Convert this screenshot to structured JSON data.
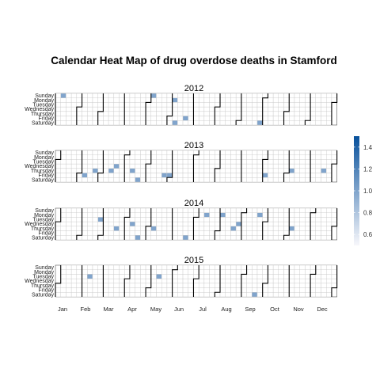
{
  "chart_data": {
    "type": "heatmap",
    "title": "Calendar Heat Map of drug overdose deaths in Stamford",
    "years": [
      "2012",
      "2013",
      "2014",
      "2015"
    ],
    "weekdays": [
      "Sunday",
      "Monday",
      "Tuesday",
      "Wednesday",
      "Thursday",
      "Friday",
      "Saturday"
    ],
    "months": [
      "Jan",
      "Feb",
      "Mar",
      "Apr",
      "May",
      "Jun",
      "Jul",
      "Aug",
      "Sep",
      "Oct",
      "Nov",
      "Dec"
    ],
    "legend": {
      "ticks": [
        1.4,
        1.2,
        1.0,
        0.8,
        0.6
      ],
      "min": 0.5,
      "max": 1.5,
      "low_color": "#f7f7fb",
      "high_color": "#08519c"
    },
    "values": [
      {
        "date": "2012-01-08",
        "value": 1
      },
      {
        "date": "2012-05-06",
        "value": 1
      },
      {
        "date": "2012-06-04",
        "value": 1
      },
      {
        "date": "2012-06-09",
        "value": 1
      },
      {
        "date": "2012-06-22",
        "value": 1
      },
      {
        "date": "2012-09-29",
        "value": 1
      },
      {
        "date": "2013-02-08",
        "value": 1
      },
      {
        "date": "2013-02-21",
        "value": 1
      },
      {
        "date": "2013-03-14",
        "value": 1
      },
      {
        "date": "2013-03-20",
        "value": 1
      },
      {
        "date": "2013-04-11",
        "value": 1
      },
      {
        "date": "2013-04-20",
        "value": 1
      },
      {
        "date": "2013-05-24",
        "value": 1
      },
      {
        "date": "2013-05-31",
        "value": 1
      },
      {
        "date": "2013-10-04",
        "value": 1
      },
      {
        "date": "2013-11-07",
        "value": 1
      },
      {
        "date": "2013-12-19",
        "value": 1
      },
      {
        "date": "2014-02-25",
        "value": 1
      },
      {
        "date": "2014-03-20",
        "value": 1
      },
      {
        "date": "2014-04-09",
        "value": 1
      },
      {
        "date": "2014-04-19",
        "value": 1
      },
      {
        "date": "2014-05-08",
        "value": 1
      },
      {
        "date": "2014-06-21",
        "value": 1
      },
      {
        "date": "2014-07-14",
        "value": 1
      },
      {
        "date": "2014-08-04",
        "value": 1
      },
      {
        "date": "2014-08-21",
        "value": 1
      },
      {
        "date": "2014-08-27",
        "value": 1
      },
      {
        "date": "2014-09-22",
        "value": 1
      },
      {
        "date": "2014-11-06",
        "value": 1
      },
      {
        "date": "2015-02-10",
        "value": 1
      },
      {
        "date": "2015-05-12",
        "value": 1
      },
      {
        "date": "2015-09-19",
        "value": 1
      }
    ]
  }
}
